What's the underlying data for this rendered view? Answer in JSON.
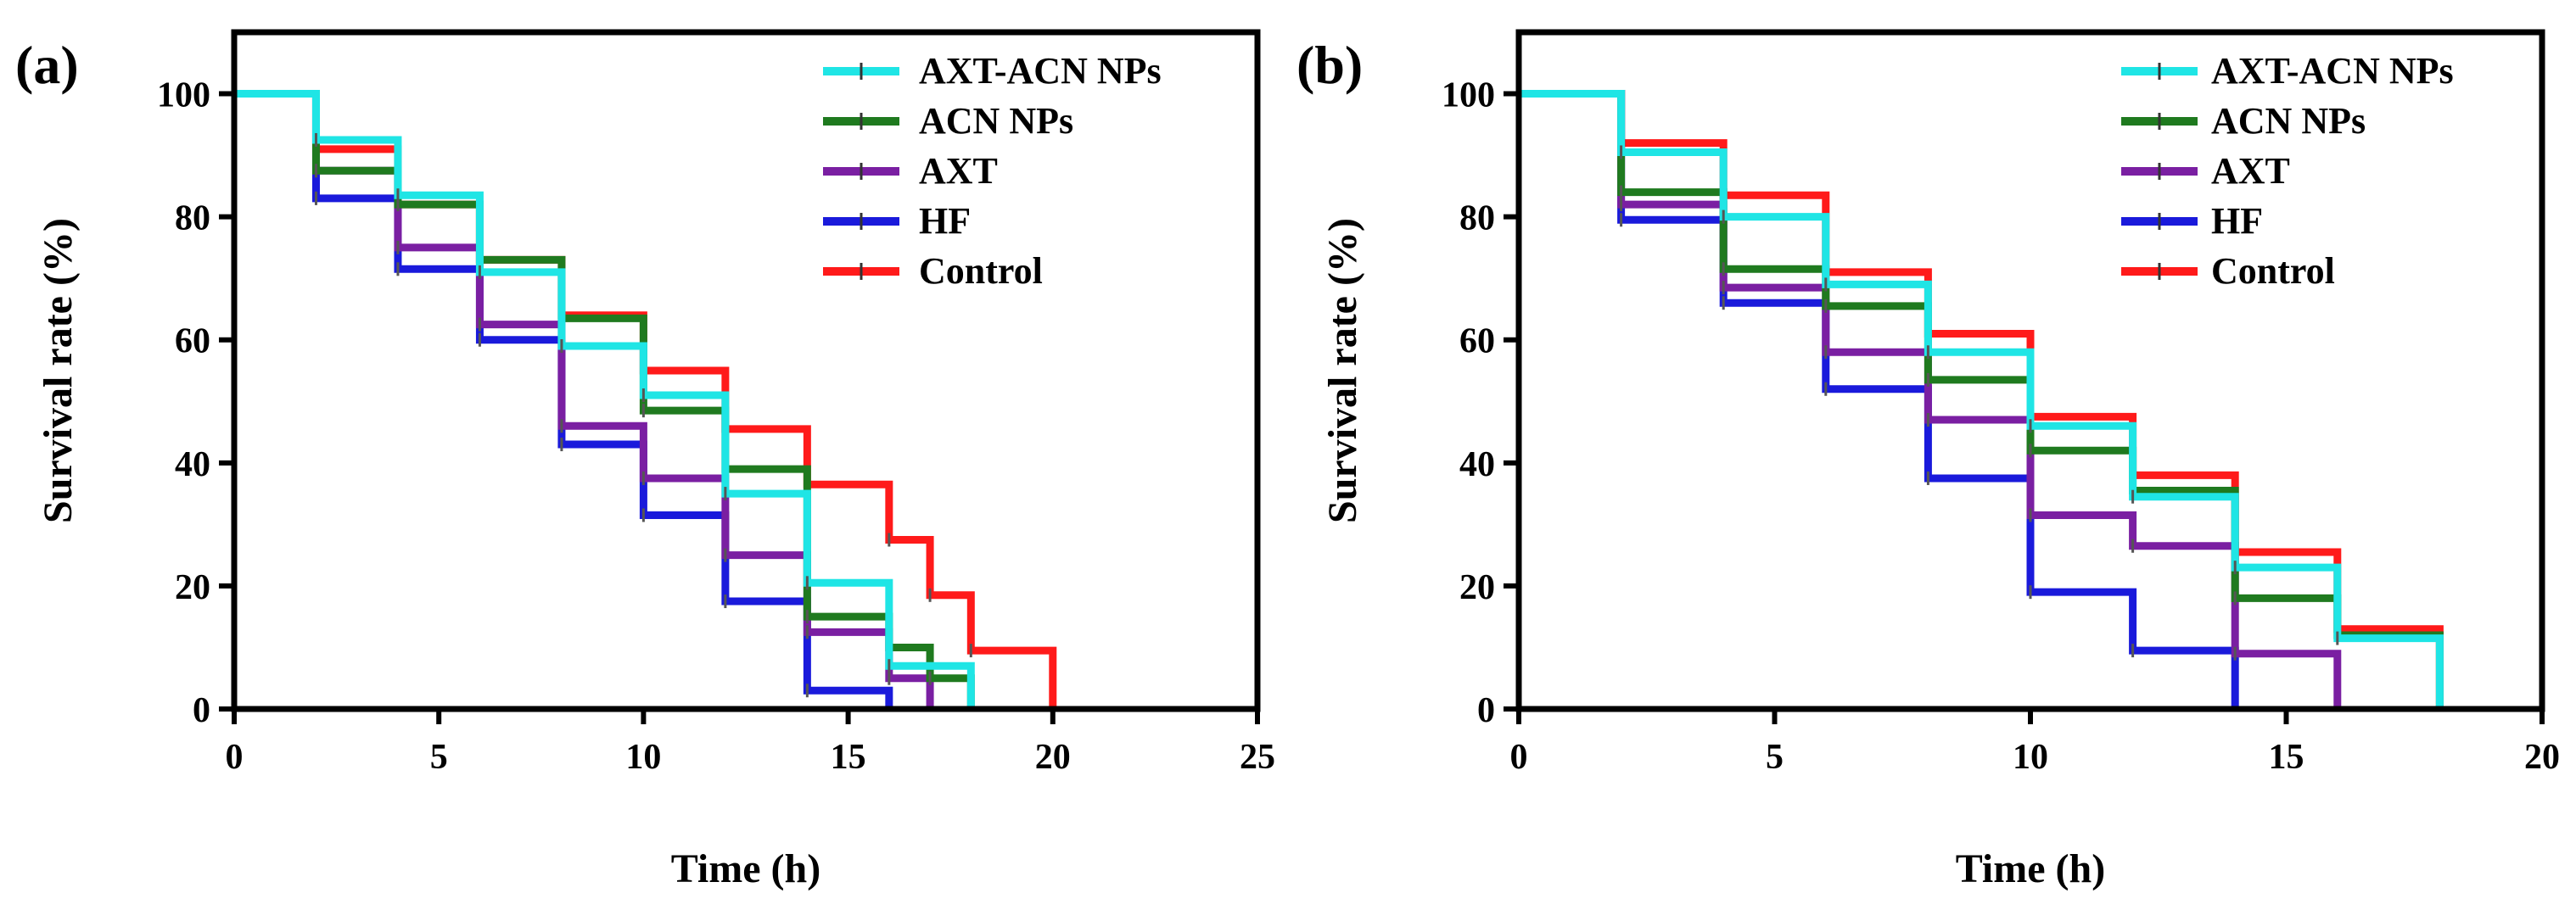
{
  "chart_data": [
    {
      "type": "line",
      "step": true,
      "panel_label": "(a)",
      "title": "",
      "xlabel": "Time (h)",
      "ylabel": "Survival rate (%)",
      "xlim": [
        0,
        25
      ],
      "ylim": [
        0,
        110
      ],
      "xticks": [
        0,
        5,
        10,
        15,
        20,
        25
      ],
      "yticks": [
        0,
        20,
        40,
        60,
        80,
        100
      ],
      "legend_position": "top-right",
      "series": [
        {
          "name": "Control",
          "color": "#ff1a1a",
          "x": [
            0,
            2,
            4,
            6,
            8,
            10,
            12,
            14,
            16,
            17,
            18,
            20
          ],
          "y": [
            100,
            91,
            82,
            73,
            64,
            55,
            45.5,
            36.5,
            27.5,
            18.5,
            9.5,
            0
          ]
        },
        {
          "name": "HF",
          "color": "#1a1adb",
          "x": [
            0,
            2,
            4,
            6,
            8,
            10,
            12,
            14,
            16
          ],
          "y": [
            100,
            83,
            71.5,
            60,
            43,
            31.5,
            17.5,
            3,
            0
          ]
        },
        {
          "name": "AXT",
          "color": "#7a1fa2",
          "x": [
            0,
            2,
            4,
            6,
            8,
            10,
            12,
            14,
            16,
            17
          ],
          "y": [
            100,
            87.5,
            75,
            62.5,
            46,
            37.5,
            25,
            12.5,
            5,
            0
          ]
        },
        {
          "name": "ACN NPs",
          "color": "#1f7a1f",
          "x": [
            0,
            2,
            4,
            6,
            8,
            10,
            12,
            14,
            16,
            17,
            18
          ],
          "y": [
            100,
            87.5,
            82,
            73,
            63.5,
            48.5,
            39,
            15,
            10,
            5,
            0
          ]
        },
        {
          "name": "AXT-ACN NPs",
          "color": "#1fe5e5",
          "x": [
            0,
            2,
            4,
            6,
            8,
            10,
            12,
            14,
            16,
            18
          ],
          "y": [
            100,
            92.5,
            83.5,
            71,
            59,
            51,
            35,
            20.5,
            7,
            0
          ]
        }
      ],
      "legend_order": [
        "AXT-ACN NPs",
        "ACN NPs",
        "AXT",
        "HF",
        "Control"
      ]
    },
    {
      "type": "line",
      "step": true,
      "panel_label": "(b)",
      "title": "",
      "xlabel": "Time (h)",
      "ylabel": "Survival rate (%)",
      "xlim": [
        0,
        20
      ],
      "ylim": [
        0,
        110
      ],
      "xticks": [
        0,
        5,
        10,
        15,
        20
      ],
      "yticks": [
        0,
        20,
        40,
        60,
        80,
        100
      ],
      "legend_position": "top-right",
      "series": [
        {
          "name": "Control",
          "color": "#ff1a1a",
          "x": [
            0,
            2,
            4,
            6,
            8,
            10,
            12,
            14,
            16,
            18
          ],
          "y": [
            100,
            92,
            83.5,
            71,
            61,
            47.5,
            38,
            25.5,
            13,
            0
          ]
        },
        {
          "name": "HF",
          "color": "#1a1adb",
          "x": [
            0,
            2,
            4,
            6,
            8,
            10,
            12,
            14
          ],
          "y": [
            100,
            79.5,
            66,
            52,
            37.5,
            19,
            9.5,
            0
          ]
        },
        {
          "name": "AXT",
          "color": "#7a1fa2",
          "x": [
            0,
            2,
            4,
            6,
            8,
            10,
            12,
            14,
            16
          ],
          "y": [
            100,
            82,
            68.5,
            58,
            47,
            31.5,
            26.5,
            9,
            0
          ]
        },
        {
          "name": "ACN NPs",
          "color": "#1f7a1f",
          "x": [
            0,
            2,
            4,
            6,
            8,
            10,
            12,
            14,
            16,
            18
          ],
          "y": [
            100,
            84,
            71.5,
            65.5,
            53.5,
            42,
            35.5,
            18,
            12,
            0
          ]
        },
        {
          "name": "AXT-ACN NPs",
          "color": "#1fe5e5",
          "x": [
            0,
            2,
            4,
            6,
            8,
            10,
            12,
            14,
            16,
            18
          ],
          "y": [
            100,
            90.5,
            80,
            69,
            58,
            46,
            34.5,
            23,
            11.5,
            0
          ]
        }
      ],
      "legend_order": [
        "AXT-ACN NPs",
        "ACN NPs",
        "AXT",
        "HF",
        "Control"
      ]
    }
  ]
}
